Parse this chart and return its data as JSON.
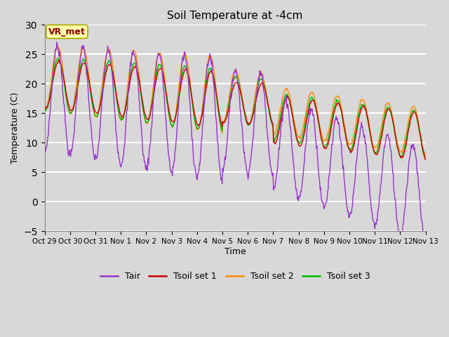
{
  "title": "Soil Temperature at -4cm",
  "xlabel": "Time",
  "ylabel": "Temperature (C)",
  "ylim": [
    -5,
    30
  ],
  "yticks": [
    -5,
    0,
    5,
    10,
    15,
    20,
    25,
    30
  ],
  "legend_labels": [
    "Tair",
    "Tsoil set 1",
    "Tsoil set 2",
    "Tsoil set 3"
  ],
  "legend_colors": [
    "#9933cc",
    "#cc0000",
    "#ff8800",
    "#00bb00"
  ],
  "annotation_text": "VR_met",
  "annotation_color": "#8b0000",
  "annotation_bg": "#ffffaa",
  "background_color": "#d8d8d8",
  "plot_bg_color": "#d8d8d8",
  "grid_color": "#ffffff",
  "x_labels": [
    "Oct 29",
    "Oct 30",
    "Oct 31",
    "Nov 1",
    "Nov 2",
    "Nov 3",
    "Nov 4",
    "Nov 5",
    "Nov 6",
    "Nov 7",
    "Nov 8",
    "Nov 9",
    "Nov 10",
    "Nov 11",
    "Nov 12",
    "Nov 13"
  ],
  "x_positions": [
    0,
    1,
    2,
    3,
    4,
    5,
    6,
    7,
    8,
    9,
    10,
    11,
    12,
    13,
    14,
    15
  ]
}
